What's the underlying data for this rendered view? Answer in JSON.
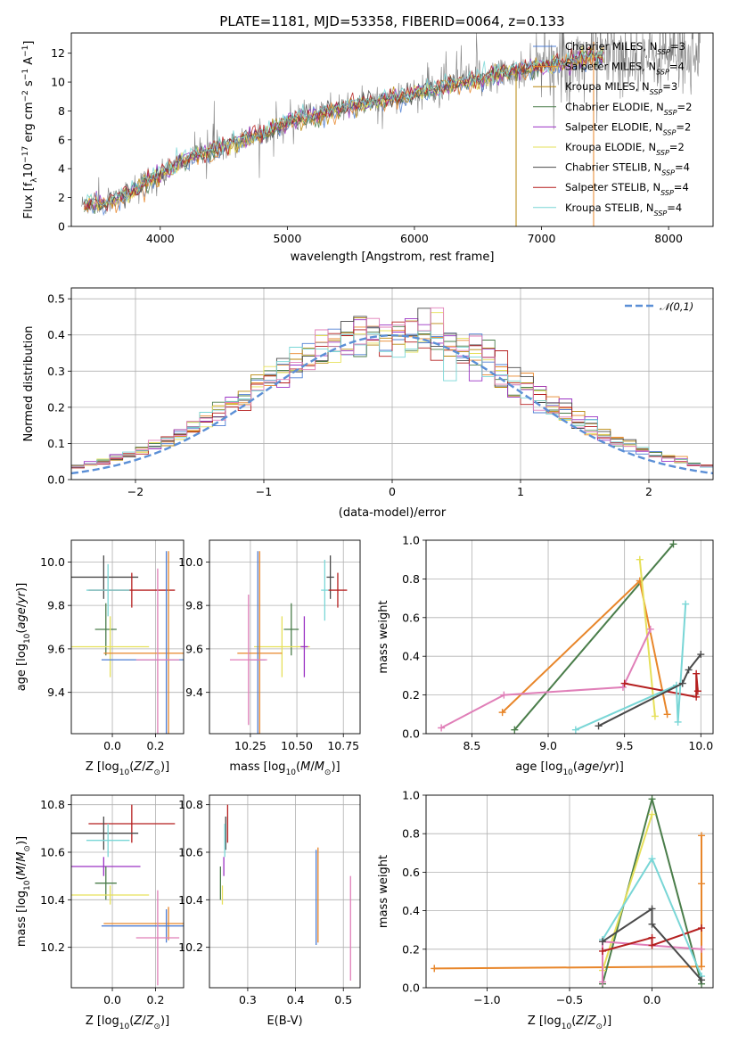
{
  "figure": {
    "title": "PLATE=1181, MJD=53358, FIBERID=0064, z=0.133"
  },
  "colors": {
    "Chabrier MILES": "#4f7fd4",
    "Salpeter MILES": "#e8862a",
    "Kroupa MILES": "#b8860b",
    "Chabrier ELODIE": "#4a7d4a",
    "Salpeter ELODIE": "#9b33c4",
    "Kroupa ELODIE": "#e6e05a",
    "Chabrier STELIB": "#4a4a4a",
    "Salpeter STELIB": "#b51f1f",
    "Kroupa STELIB": "#79d6d6",
    "data": "#7f7f7f",
    "pink": "#e07fb8",
    "normal": "#5b8fd6"
  },
  "chart_data": [
    {
      "type": "line",
      "panel": "spectrum",
      "xlabel": "wavelength [Angstrom, rest frame]",
      "ylabel": "Flux [f_λ10^-17 erg cm^-2 s^-1 A^-1]",
      "xlim": [
        3300,
        8350
      ],
      "ylim": [
        0,
        13.4
      ],
      "xticks": [
        "4000",
        "5000",
        "6000",
        "7000",
        "8000"
      ],
      "yticks": [
        "0",
        "2",
        "4",
        "6",
        "8",
        "10",
        "12"
      ],
      "legend_position": "top-right",
      "legend": [
        {
          "name": "Chabrier MILES",
          "nssp": "3"
        },
        {
          "name": "Salpeter MILES",
          "nssp": "4"
        },
        {
          "name": "Kroupa MILES",
          "nssp": "3"
        },
        {
          "name": "Chabrier ELODIE",
          "nssp": "2"
        },
        {
          "name": "Salpeter ELODIE",
          "nssp": "2"
        },
        {
          "name": "Kroupa ELODIE",
          "nssp": "2"
        },
        {
          "name": "Chabrier STELIB",
          "nssp": "4"
        },
        {
          "name": "Salpeter STELIB",
          "nssp": "4"
        },
        {
          "name": "Kroupa STELIB",
          "nssp": "4"
        }
      ],
      "continuum": {
        "x": [
          3400,
          3600,
          3800,
          4000,
          4200,
          4500,
          4800,
          5000,
          5300,
          5600,
          5900,
          6200,
          6500,
          6800,
          7100,
          7400
        ],
        "y": [
          1.5,
          1.7,
          2.5,
          3.6,
          4.6,
          5.6,
          6.4,
          7.2,
          7.9,
          8.5,
          9.0,
          9.6,
          10.2,
          10.8,
          11.2,
          11.8
        ]
      },
      "data_spectrum_range": [
        3350,
        8250
      ]
    },
    {
      "type": "line",
      "panel": "residual-histogram",
      "xlabel": "(data-model)/error",
      "ylabel": "Normed distribution",
      "xlim": [
        -2.5,
        2.5
      ],
      "ylim": [
        0,
        0.53
      ],
      "xticks": [
        "−2",
        "−1",
        "0",
        "1",
        "2"
      ],
      "yticks": [
        "0.0",
        "0.1",
        "0.2",
        "0.3",
        "0.4",
        "0.5"
      ],
      "legend": [
        {
          "name": "𝒩(0,1)"
        }
      ],
      "legend_position": "top-right",
      "bins": [
        -2.5,
        2.5,
        50
      ]
    },
    {
      "type": "scatter",
      "panel": "Z-age",
      "xlabel": "Z [log10(Z/Z⊙)]",
      "ylabel": "age  [log10(age/yr)]",
      "xlim": [
        -0.19,
        0.33
      ],
      "ylim": [
        9.21,
        10.1
      ],
      "xticks": [
        "0.0",
        "0.2"
      ],
      "yticks": [
        "9.4",
        "9.6",
        "9.8",
        "10.0"
      ],
      "points": [
        {
          "model": "Chabrier STELIB",
          "x": -0.04,
          "y": 9.93,
          "xerr": 0.16,
          "yerr": 0.1
        },
        {
          "model": "Salpeter STELIB",
          "x": 0.09,
          "y": 9.87,
          "xerr": 0.2,
          "yerr": 0.08
        },
        {
          "model": "Chabrier ELODIE",
          "x": -0.03,
          "y": 9.69,
          "xerr": 0.05,
          "yerr": 0.12
        },
        {
          "model": "Kroupa ELODIE",
          "x": -0.01,
          "y": 9.61,
          "xerr": 0.18,
          "yerr": 0.14
        },
        {
          "model": "Salpeter MILES",
          "x": 0.26,
          "y": 9.58,
          "xerr": 0.3,
          "yerr": 0.47
        },
        {
          "model": "Chabrier MILES",
          "x": 0.25,
          "y": 9.55,
          "xerr": 0.3,
          "yerr": 0.5
        },
        {
          "model": "Kroupa STELIB",
          "x": -0.02,
          "y": 9.87,
          "xerr": 0.1,
          "yerr": 0.12
        },
        {
          "model": "pink",
          "x": 0.21,
          "y": 9.55,
          "xerr": 0.1,
          "yerr": 0.42
        }
      ]
    },
    {
      "type": "scatter",
      "panel": "mass-age",
      "xlabel": "mass [log10(M/M⊙)]",
      "ylabel": "",
      "xlim": [
        10.03,
        10.84
      ],
      "ylim": [
        9.21,
        10.1
      ],
      "xticks": [
        "10.25",
        "10.50",
        "10.75"
      ],
      "yticks": [
        "9.4",
        "9.6",
        "9.8",
        "10.0"
      ],
      "points": [
        {
          "model": "Chabrier STELIB",
          "x": 10.68,
          "y": 9.93,
          "xerr": 0.02,
          "yerr": 0.1
        },
        {
          "model": "Salpeter STELIB",
          "x": 10.72,
          "y": 9.87,
          "xerr": 0.05,
          "yerr": 0.08
        },
        {
          "model": "Chabrier ELODIE",
          "x": 10.47,
          "y": 9.69,
          "xerr": 0.04,
          "yerr": 0.12
        },
        {
          "model": "Kroupa ELODIE",
          "x": 10.42,
          "y": 9.61,
          "xerr": 0.15,
          "yerr": 0.14
        },
        {
          "model": "Salpeter MILES",
          "x": 10.3,
          "y": 9.58,
          "xerr": 0.12,
          "yerr": 0.47
        },
        {
          "model": "Chabrier MILES",
          "x": 10.29,
          "y": 9.55,
          "xerr": 0.04,
          "yerr": 0.5
        },
        {
          "model": "Kroupa STELIB",
          "x": 10.65,
          "y": 9.87,
          "xerr": 0.02,
          "yerr": 0.14
        },
        {
          "model": "Salpeter ELODIE",
          "x": 10.54,
          "y": 9.61,
          "xerr": 0.02,
          "yerr": 0.14
        },
        {
          "model": "pink",
          "x": 10.24,
          "y": 9.55,
          "xerr": 0.1,
          "yerr": 0.3
        }
      ]
    },
    {
      "type": "line",
      "panel": "age-massweight",
      "xlabel": "age  [log10(age/yr)]",
      "ylabel": "mass weight",
      "xlim": [
        8.2,
        10.08
      ],
      "ylim": [
        0,
        1
      ],
      "xticks": [
        "8.5",
        "9.0",
        "9.5",
        "10.0"
      ],
      "yticks": [
        "0.0",
        "0.2",
        "0.4",
        "0.6",
        "0.8",
        "1.0"
      ],
      "series": [
        {
          "model": "Chabrier ELODIE",
          "x": [
            8.78,
            9.82
          ],
          "y": [
            0.02,
            0.98
          ]
        },
        {
          "model": "Salpeter MILES",
          "x": [
            8.7,
            9.6,
            9.78
          ],
          "y": [
            0.11,
            0.79,
            0.1
          ]
        },
        {
          "model": "Kroupa ELODIE",
          "x": [
            9.6,
            9.7
          ],
          "y": [
            0.9,
            0.09
          ]
        },
        {
          "model": "pink",
          "x": [
            8.3,
            8.71,
            9.49,
            9.67
          ],
          "y": [
            0.03,
            0.2,
            0.24,
            0.54
          ]
        },
        {
          "model": "Salpeter STELIB",
          "x": [
            9.5,
            9.97,
            9.97,
            9.98
          ],
          "y": [
            0.26,
            0.19,
            0.31,
            0.22
          ]
        },
        {
          "model": "Kroupa STELIB",
          "x": [
            9.18,
            9.84,
            9.85,
            9.9
          ],
          "y": [
            0.02,
            0.25,
            0.06,
            0.67
          ]
        },
        {
          "model": "Chabrier STELIB",
          "x": [
            9.33,
            9.88,
            9.92,
            10.0
          ],
          "y": [
            0.04,
            0.26,
            0.33,
            0.41
          ]
        }
      ]
    },
    {
      "type": "scatter",
      "panel": "Z-mass",
      "xlabel": "Z [log10(Z/Z⊙)]",
      "ylabel": "mass [log10(M/M⊙)]",
      "xlim": [
        -0.19,
        0.33
      ],
      "ylim": [
        10.03,
        10.84
      ],
      "xticks": [
        "0.0",
        "0.2"
      ],
      "yticks": [
        "10.2",
        "10.4",
        "10.6",
        "10.8"
      ],
      "points": [
        {
          "model": "Salpeter STELIB",
          "x": 0.09,
          "y": 10.72,
          "xerr": 0.2,
          "yerr": 0.08
        },
        {
          "model": "Chabrier STELIB",
          "x": -0.04,
          "y": 10.68,
          "xerr": 0.16,
          "yerr": 0.07
        },
        {
          "model": "Kroupa STELIB",
          "x": -0.02,
          "y": 10.65,
          "xerr": 0.1,
          "yerr": 0.07
        },
        {
          "model": "Salpeter ELODIE",
          "x": -0.04,
          "y": 10.54,
          "xerr": 0.17,
          "yerr": 0.04
        },
        {
          "model": "Chabrier ELODIE",
          "x": -0.03,
          "y": 10.47,
          "xerr": 0.05,
          "yerr": 0.07
        },
        {
          "model": "Kroupa ELODIE",
          "x": -0.01,
          "y": 10.42,
          "xerr": 0.18,
          "yerr": 0.04
        },
        {
          "model": "Salpeter MILES",
          "x": 0.26,
          "y": 10.3,
          "xerr": 0.3,
          "yerr": 0.07
        },
        {
          "model": "Chabrier MILES",
          "x": 0.25,
          "y": 10.29,
          "xerr": 0.3,
          "yerr": 0.07
        },
        {
          "model": "pink",
          "x": 0.21,
          "y": 10.24,
          "xerr": 0.1,
          "yerr": 0.2
        }
      ]
    },
    {
      "type": "scatter",
      "panel": "EBV-mass",
      "xlabel": "E(B-V)",
      "ylabel": "",
      "xlim": [
        0.22,
        0.535
      ],
      "ylim": [
        10.03,
        10.84
      ],
      "xticks": [
        "0.3",
        "0.4",
        "0.5"
      ],
      "yticks": [
        "10.2",
        "10.4",
        "10.6",
        "10.8"
      ],
      "points": [
        {
          "model": "Salpeter STELIB",
          "x": 0.258,
          "y": 10.72,
          "xerr": 0,
          "yerr": 0.08
        },
        {
          "model": "Chabrier STELIB",
          "x": 0.254,
          "y": 10.68,
          "xerr": 0,
          "yerr": 0.07
        },
        {
          "model": "Kroupa STELIB",
          "x": 0.252,
          "y": 10.65,
          "xerr": 0,
          "yerr": 0.07
        },
        {
          "model": "Salpeter ELODIE",
          "x": 0.25,
          "y": 10.54,
          "xerr": 0,
          "yerr": 0.04
        },
        {
          "model": "Chabrier ELODIE",
          "x": 0.243,
          "y": 10.47,
          "xerr": 0,
          "yerr": 0.07
        },
        {
          "model": "Kroupa ELODIE",
          "x": 0.247,
          "y": 10.42,
          "xerr": 0,
          "yerr": 0.04
        },
        {
          "model": "Salpeter MILES",
          "x": 0.447,
          "y": 10.42,
          "xerr": 0,
          "yerr": 0.2
        },
        {
          "model": "Chabrier MILES",
          "x": 0.443,
          "y": 10.41,
          "xerr": 0,
          "yerr": 0.2
        },
        {
          "model": "pink",
          "x": 0.515,
          "y": 10.28,
          "xerr": 0,
          "yerr": 0.22
        }
      ]
    },
    {
      "type": "line",
      "panel": "Z-massweight",
      "xlabel": "Z [log10(Z/Z⊙)]",
      "ylabel": "mass weight",
      "xlim": [
        -1.37,
        0.37
      ],
      "ylim": [
        0,
        1
      ],
      "xticks": [
        "−1.0",
        "−0.5",
        "0.0"
      ],
      "yticks": [
        "0.0",
        "0.2",
        "0.4",
        "0.6",
        "0.8",
        "1.0"
      ],
      "series": [
        {
          "model": "Salpeter MILES",
          "x": [
            -1.32,
            0.3,
            0.3,
            0.3
          ],
          "y": [
            0.1,
            0.11,
            0.79,
            0.54
          ]
        },
        {
          "model": "Chabrier ELODIE",
          "x": [
            -0.3,
            0.0,
            0.3
          ],
          "y": [
            0.02,
            0.98,
            0.02
          ]
        },
        {
          "model": "Kroupa ELODIE",
          "x": [
            -0.3,
            0.0
          ],
          "y": [
            0.09,
            0.9
          ]
        },
        {
          "model": "pink",
          "x": [
            -0.3,
            -0.3,
            0.3
          ],
          "y": [
            0.03,
            0.24,
            0.2
          ]
        },
        {
          "model": "Salpeter STELIB",
          "x": [
            -0.3,
            0.0,
            0.0,
            0.3
          ],
          "y": [
            0.19,
            0.26,
            0.22,
            0.31
          ]
        },
        {
          "model": "Kroupa STELIB",
          "x": [
            -0.3,
            0.0,
            0.3
          ],
          "y": [
            0.25,
            0.67,
            0.06
          ]
        },
        {
          "model": "Chabrier STELIB",
          "x": [
            -0.3,
            0.0,
            0.0,
            0.3
          ],
          "y": [
            0.24,
            0.41,
            0.33,
            0.04
          ]
        }
      ]
    }
  ]
}
